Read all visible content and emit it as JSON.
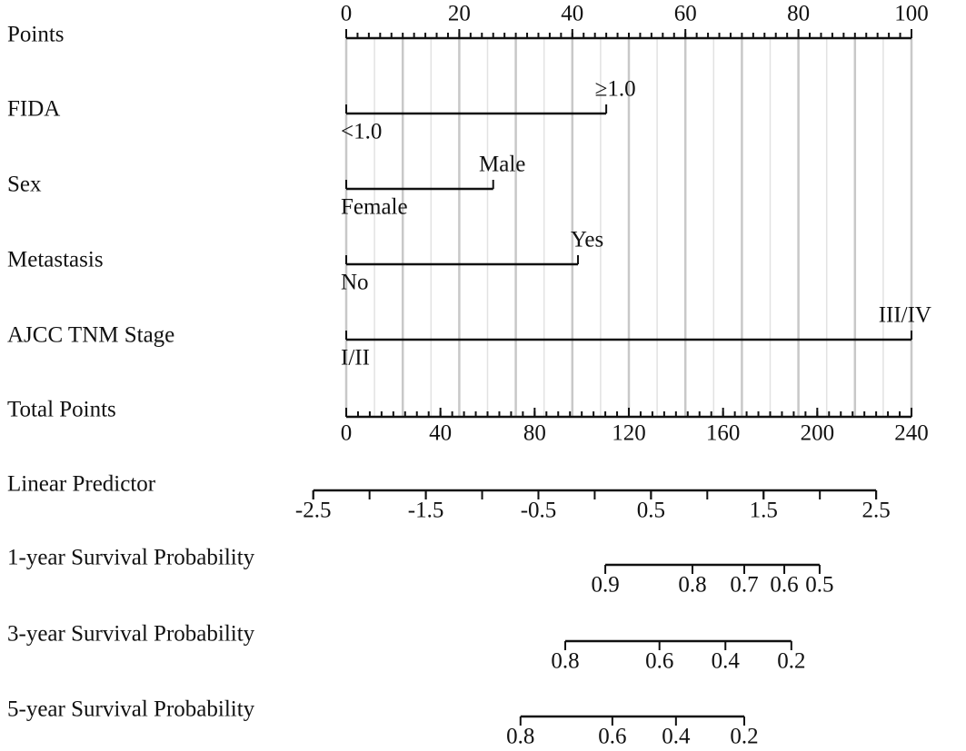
{
  "chart_data": {
    "type": "nomogram",
    "grid": true,
    "grid_step": 5,
    "points": {
      "label": "Points",
      "lim": [
        0,
        100
      ],
      "ticks": [
        0,
        20,
        40,
        60,
        80,
        100
      ],
      "minor_step": 2
    },
    "variables": [
      {
        "label": "FIDA",
        "levels": [
          "<1.0",
          "≥1.0"
        ],
        "points": [
          0,
          46
        ]
      },
      {
        "label": "Sex",
        "levels": [
          "Female",
          "Male"
        ],
        "points": [
          0,
          26
        ]
      },
      {
        "label": "Metastasis",
        "levels": [
          "No",
          "Yes"
        ],
        "points": [
          0,
          41
        ]
      },
      {
        "label": "AJCC TNM Stage",
        "levels": [
          "I/II",
          "III/IV"
        ],
        "points": [
          0,
          100
        ]
      }
    ],
    "total_points": {
      "label": "Total Points",
      "lim": [
        0,
        240
      ],
      "ticks": [
        0,
        40,
        80,
        120,
        160,
        200,
        240
      ],
      "minor_step": 5
    },
    "linear_predictor": {
      "label": "Linear Predictor",
      "lim": [
        -2.5,
        2.5
      ],
      "total_points_at_lim": [
        -14,
        225
      ],
      "ticks": [
        -2.5,
        -1.5,
        -0.5,
        0.5,
        1.5,
        2.5
      ],
      "minor_step": 0.5
    },
    "survival": [
      {
        "label": "1-year Survival Probability",
        "ticks": [
          0.9,
          0.8,
          0.7,
          0.6,
          0.5
        ],
        "tick_total_points": [
          110,
          147,
          169,
          186,
          201
        ]
      },
      {
        "label": "3-year Survival Probability",
        "ticks": [
          0.8,
          0.6,
          0.4,
          0.2
        ],
        "tick_total_points": [
          93,
          133,
          161,
          189
        ]
      },
      {
        "label": "5-year Survival Probability",
        "ticks": [
          0.8,
          0.6,
          0.4,
          0.2
        ],
        "tick_total_points": [
          74,
          113,
          140,
          169
        ]
      }
    ]
  }
}
